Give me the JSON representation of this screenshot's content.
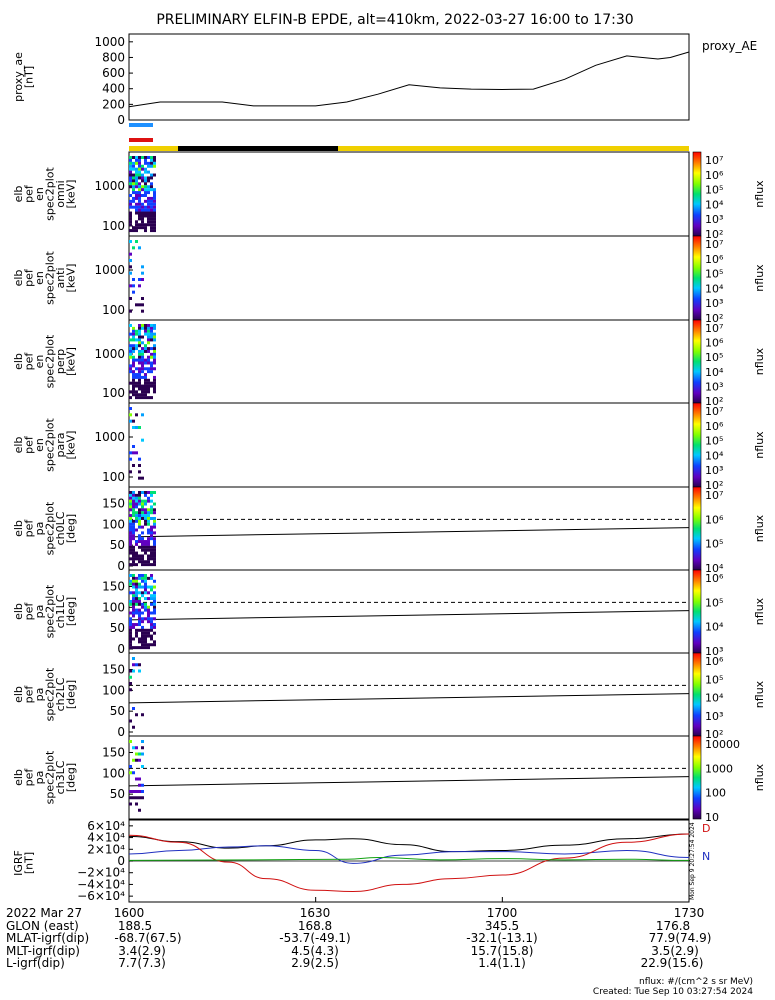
{
  "title": "PRELIMINARY ELFIN-B EPDE, alt=410km, 2022-03-27 16:00 to 17:30",
  "ae_label": "proxy_AE",
  "nflux_label": "nflux",
  "colors": {
    "science_bar_blue": "#1e90ff",
    "science_bar_red": "#dd1111",
    "status_yellow": "#f0d000",
    "status_black": "#000000",
    "bz": "#000000",
    "by": "#2030c0",
    "bx": "#d01010",
    "field_green": "#10a010"
  },
  "panels": {
    "ae": {
      "ylabel": [
        "proxy_ae",
        "[nT]"
      ],
      "yticks": [
        "1000",
        "800",
        "600",
        "400",
        "200",
        "0"
      ],
      "ylim": [
        0,
        1100
      ]
    },
    "omni": {
      "ylabel": [
        "elb",
        "pef",
        "en",
        "spec2plot",
        "omni",
        "[keV]"
      ],
      "yticks": [
        "1000",
        "100"
      ]
    },
    "anti": {
      "ylabel": [
        "elb",
        "pef",
        "en",
        "spec2plot",
        "anti",
        "[keV]"
      ],
      "yticks": [
        "1000",
        "100"
      ]
    },
    "perp": {
      "ylabel": [
        "elb",
        "pef",
        "en",
        "spec2plot",
        "perp",
        "[keV]"
      ],
      "yticks": [
        "1000",
        "100"
      ]
    },
    "para": {
      "ylabel": [
        "elb",
        "pef",
        "en",
        "spec2plot",
        "para",
        "[keV]"
      ],
      "yticks": [
        "1000",
        "100"
      ]
    },
    "ch0": {
      "ylabel": [
        "elb",
        "pef",
        "pa",
        "spec2plot",
        "ch0LC",
        "[deg]"
      ],
      "yticks": [
        "150",
        "100",
        "50",
        "0"
      ]
    },
    "ch1": {
      "ylabel": [
        "elb",
        "pef",
        "pa",
        "spec2plot",
        "ch1LC",
        "[deg]"
      ],
      "yticks": [
        "150",
        "100",
        "50",
        "0"
      ]
    },
    "ch2": {
      "ylabel": [
        "elb",
        "pef",
        "pa",
        "spec2plot",
        "ch2LC",
        "[deg]"
      ],
      "yticks": [
        "150",
        "100",
        "50",
        "0"
      ]
    },
    "ch3": {
      "ylabel": [
        "elb",
        "pef",
        "pa",
        "spec2plot",
        "ch3LC",
        "[deg]"
      ],
      "yticks": [
        "150",
        "100",
        "50"
      ]
    },
    "igrf": {
      "ylabel": [
        "IGRF",
        "[nT]"
      ],
      "yticks": [
        "6×10⁴",
        "4×10⁴",
        "2×10⁴",
        "0",
        "−2×10⁴",
        "−4×10⁴",
        "−6×10⁴"
      ],
      "side_labels": [
        "D",
        "N"
      ],
      "stamp": "Mon Sep 9 20:27:54 2024"
    }
  },
  "colorbars": {
    "c1": {
      "ticks": [
        "10⁷",
        "10⁶",
        "10⁵",
        "10⁴",
        "10³",
        "10²"
      ]
    },
    "c2": {
      "ticks": [
        "10⁷",
        "10⁶",
        "10⁵",
        "10⁴",
        "10³",
        "10²"
      ]
    },
    "c3": {
      "ticks": [
        "10⁷",
        "10⁶",
        "10⁵",
        "10⁴",
        "10³",
        "10²"
      ]
    },
    "c4": {
      "ticks": [
        "10⁷",
        "10⁶",
        "10⁵",
        "10⁴",
        "10³",
        "10²"
      ]
    },
    "c5": {
      "ticks": [
        "10⁷",
        "10⁶",
        "10⁵",
        "10⁴"
      ]
    },
    "c6": {
      "ticks": [
        "10⁶",
        "10⁵",
        "10⁴",
        "10³"
      ]
    },
    "c7": {
      "ticks": [
        "10⁶",
        "10⁵",
        "10⁴",
        "10³",
        "10²"
      ]
    },
    "c8": {
      "ticks": [
        "10000",
        "1000",
        "100",
        "10"
      ]
    }
  },
  "chart_data": {
    "type": "line",
    "title": "PRELIMINARY ELFIN-B EPDE, alt=410km, 2022-03-27 16:00 to 17:30",
    "x_range_minutes": [
      0,
      90
    ],
    "xticks": [
      "1600",
      "1630",
      "1700",
      "1730"
    ],
    "proxy_ae": {
      "x": [
        0,
        5,
        10,
        15,
        20,
        25,
        30,
        35,
        40,
        45,
        50,
        55,
        60,
        65,
        70,
        75,
        80,
        85,
        87,
        90
      ],
      "y": [
        170,
        230,
        230,
        230,
        180,
        180,
        180,
        230,
        330,
        450,
        410,
        395,
        390,
        395,
        520,
        700,
        820,
        780,
        800,
        870
      ]
    },
    "igrf": {
      "ylim": [
        -70000,
        70000
      ],
      "series": [
        {
          "name": "",
          "x": [
            0,
            8,
            16,
            22,
            30,
            36,
            44,
            52,
            60,
            70,
            80,
            90
          ],
          "y": [
            42000,
            33000,
            22000,
            26000,
            36000,
            38000,
            28000,
            16000,
            18000,
            27000,
            38000,
            46000
          ]
        },
        {
          "name": "",
          "x": [
            0,
            8,
            16,
            22,
            30,
            36,
            44,
            52,
            60,
            70,
            80,
            90
          ],
          "y": [
            12000,
            18000,
            24000,
            26000,
            18000,
            -4000,
            10000,
            16000,
            16000,
            12000,
            18000,
            6000
          ]
        },
        {
          "name": "",
          "x": [
            0,
            8,
            16,
            22,
            30,
            36,
            44,
            52,
            60,
            70,
            80,
            90
          ],
          "y": [
            44000,
            32000,
            -2000,
            -30000,
            -50000,
            -52000,
            -40000,
            -30000,
            -24000,
            5000,
            32000,
            46000
          ]
        },
        {
          "name": "",
          "x": [
            0,
            20,
            35,
            40,
            50,
            60,
            70,
            80,
            90
          ],
          "y": [
            1000,
            2000,
            3000,
            6000,
            2000,
            4000,
            2000,
            3000,
            1000
          ]
        }
      ]
    },
    "pitch_angle_lines": {
      "loss_cone_deg": 70,
      "anti_loss_cone_deg": 112
    }
  },
  "orbit_table": {
    "rows": [
      {
        "label": "2022 Mar 27",
        "values": [
          "1600",
          "1630",
          "1700",
          "1730"
        ]
      },
      {
        "label": "GLON (east)",
        "values": [
          "188.5",
          "168.8",
          "345.5",
          "176.8"
        ]
      },
      {
        "label": "MLAT-igrf(dip)",
        "values": [
          "-68.7(67.5)",
          "-53.7(-49.1)",
          "-32.1(-13.1)",
          "77.9(74.9)"
        ]
      },
      {
        "label": "MLT-igrf(dip)",
        "values": [
          "3.4(2.9)",
          "4.5(4.3)",
          "15.7(15.8)",
          "3.5(2.9)"
        ]
      },
      {
        "label": "L-igrf(dip)",
        "values": [
          "7.7(7.3)",
          "2.9(2.5)",
          "1.4(1.1)",
          "22.9(15.6)"
        ]
      }
    ]
  },
  "footer": {
    "units": "nflux: #/(cm^2 s sr MeV)",
    "created": "Created: Tue Sep 10 03:27:54 2024"
  }
}
